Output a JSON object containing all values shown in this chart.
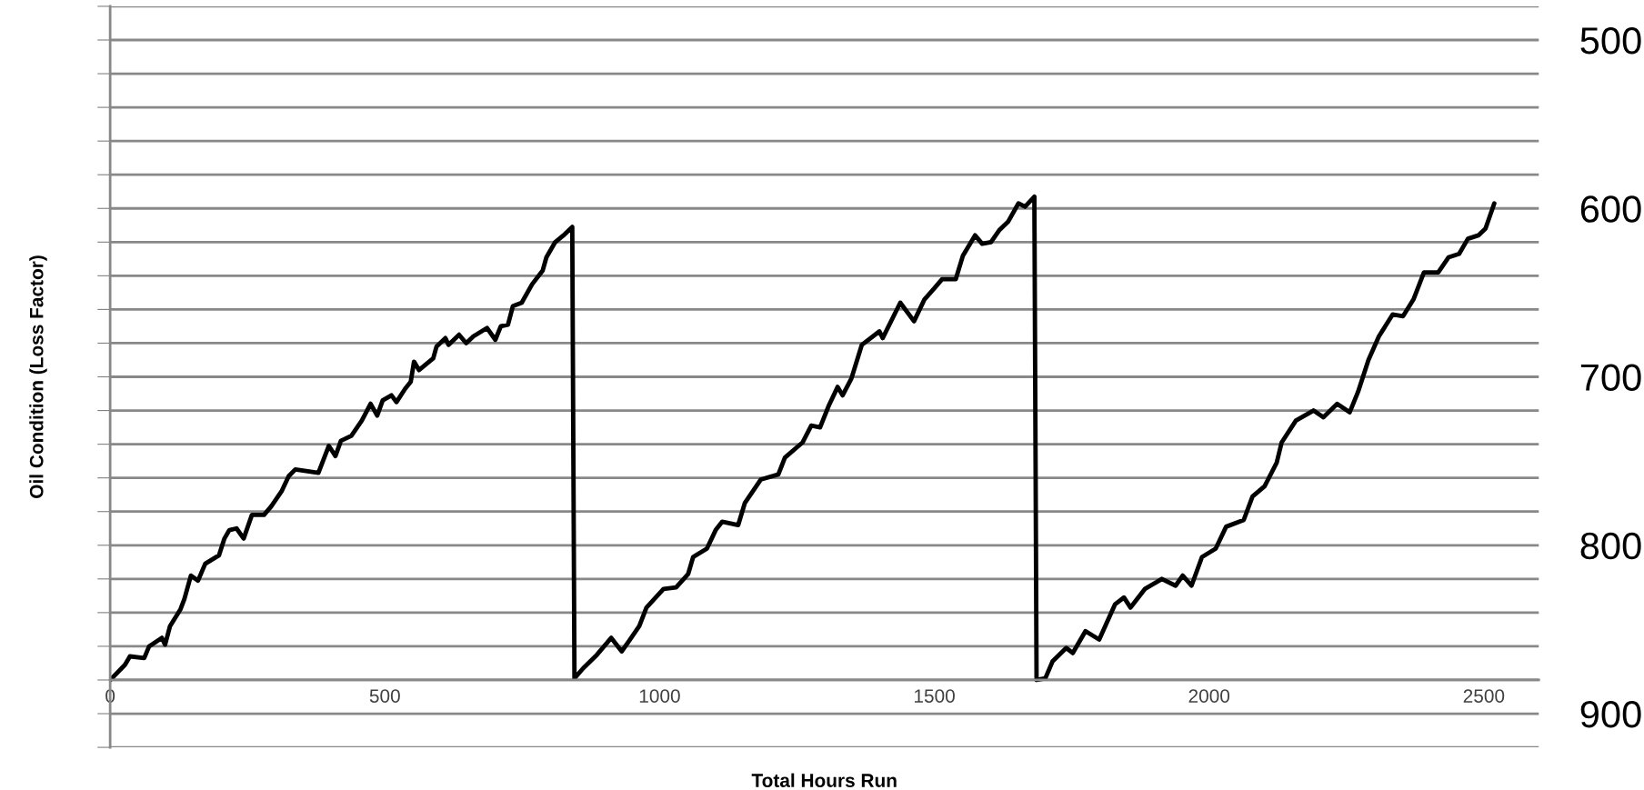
{
  "chart_data": {
    "type": "line",
    "xlabel": "Total Hours Run",
    "ylabel": "Oil Condition (Loss Factor)",
    "series": [
      {
        "color": "#000000",
        "x": [
          0,
          27,
          36,
          62,
          71,
          94,
          100,
          109,
          128,
          135,
          147,
          160,
          173,
          198,
          208,
          217,
          230,
          243,
          258,
          280,
          293,
          312,
          325,
          337,
          379,
          398,
          410,
          420,
          439,
          458,
          474,
          486,
          496,
          512,
          521,
          537,
          547,
          553,
          562,
          588,
          594,
          610,
          616,
          635,
          648,
          661,
          686,
          701,
          711,
          724,
          733,
          749,
          768,
          787,
          794,
          810,
          825,
          841,
          845,
          861,
          886,
          912,
          931,
          944,
          963,
          976,
          1007,
          1030,
          1052,
          1061,
          1086,
          1102,
          1114,
          1143,
          1155,
          1184,
          1216,
          1228,
          1260,
          1276,
          1292,
          1308,
          1324,
          1333,
          1349,
          1368,
          1400,
          1406,
          1438,
          1463,
          1482,
          1501,
          1514,
          1539,
          1552,
          1574,
          1587,
          1603,
          1618,
          1634,
          1653,
          1665,
          1682,
          1686,
          1702,
          1715,
          1740,
          1752,
          1775,
          1800,
          1829,
          1845,
          1857,
          1883,
          1914,
          1939,
          1952,
          1968,
          1987,
          2012,
          2031,
          2063,
          2079,
          2101,
          2123,
          2132,
          2158,
          2190,
          2208,
          2233,
          2256,
          2271,
          2290,
          2309,
          2334,
          2353,
          2372,
          2391,
          2417,
          2436,
          2455,
          2471,
          2490,
          2503,
          2519
        ],
        "values": [
          880,
          871,
          866,
          867,
          860,
          855,
          859,
          848,
          838,
          832,
          818,
          821,
          811,
          806,
          796,
          791,
          790,
          796,
          782,
          782,
          777,
          768,
          759,
          755,
          757,
          741,
          747,
          738,
          735,
          726,
          716,
          723,
          714,
          711,
          715,
          707,
          703,
          691,
          696,
          689,
          682,
          677,
          681,
          675,
          680,
          676,
          671,
          678,
          670,
          669,
          658,
          656,
          645,
          637,
          629,
          620,
          616,
          611,
          879,
          873,
          865,
          855,
          863,
          857,
          848,
          837,
          826,
          825,
          817,
          807,
          802,
          791,
          786,
          788,
          775,
          761,
          758,
          748,
          739,
          729,
          730,
          717,
          706,
          711,
          701,
          681,
          673,
          677,
          656,
          667,
          654,
          647,
          642,
          642,
          628,
          616,
          621,
          620,
          613,
          608,
          597,
          599,
          593,
          880,
          879,
          869,
          861,
          864,
          851,
          856,
          835,
          831,
          837,
          826,
          820,
          824,
          818,
          824,
          807,
          802,
          789,
          785,
          771,
          765,
          751,
          739,
          726,
          720,
          724,
          716,
          721,
          709,
          690,
          676,
          663,
          664,
          654,
          638,
          638,
          629,
          627,
          618,
          616,
          612,
          597
        ]
      }
    ],
    "xlim": [
      0,
      2600
    ],
    "xticks": [
      0,
      500,
      1000,
      1500,
      2000,
      2500
    ],
    "ylim": [
      920,
      480
    ],
    "yticks": [
      {
        "value": 480,
        "label": null
      },
      {
        "value": 500,
        "label": "500"
      },
      {
        "value": 520,
        "label": null
      },
      {
        "value": 540,
        "label": null
      },
      {
        "value": 560,
        "label": null
      },
      {
        "value": 580,
        "label": null
      },
      {
        "value": 600,
        "label": "600"
      },
      {
        "value": 620,
        "label": null
      },
      {
        "value": 640,
        "label": null
      },
      {
        "value": 660,
        "label": null
      },
      {
        "value": 680,
        "label": null
      },
      {
        "value": 700,
        "label": "700"
      },
      {
        "value": 720,
        "label": null
      },
      {
        "value": 740,
        "label": null
      },
      {
        "value": 760,
        "label": null
      },
      {
        "value": 780,
        "label": null
      },
      {
        "value": 800,
        "label": "800"
      },
      {
        "value": 820,
        "label": null
      },
      {
        "value": 840,
        "label": null
      },
      {
        "value": 860,
        "label": null
      },
      {
        "value": 880,
        "label": null
      },
      {
        "value": 900,
        "label": "900"
      },
      {
        "value": 920,
        "label": null
      }
    ],
    "grid": "y",
    "marker": "none",
    "line_style": "solid",
    "legend": false
  }
}
